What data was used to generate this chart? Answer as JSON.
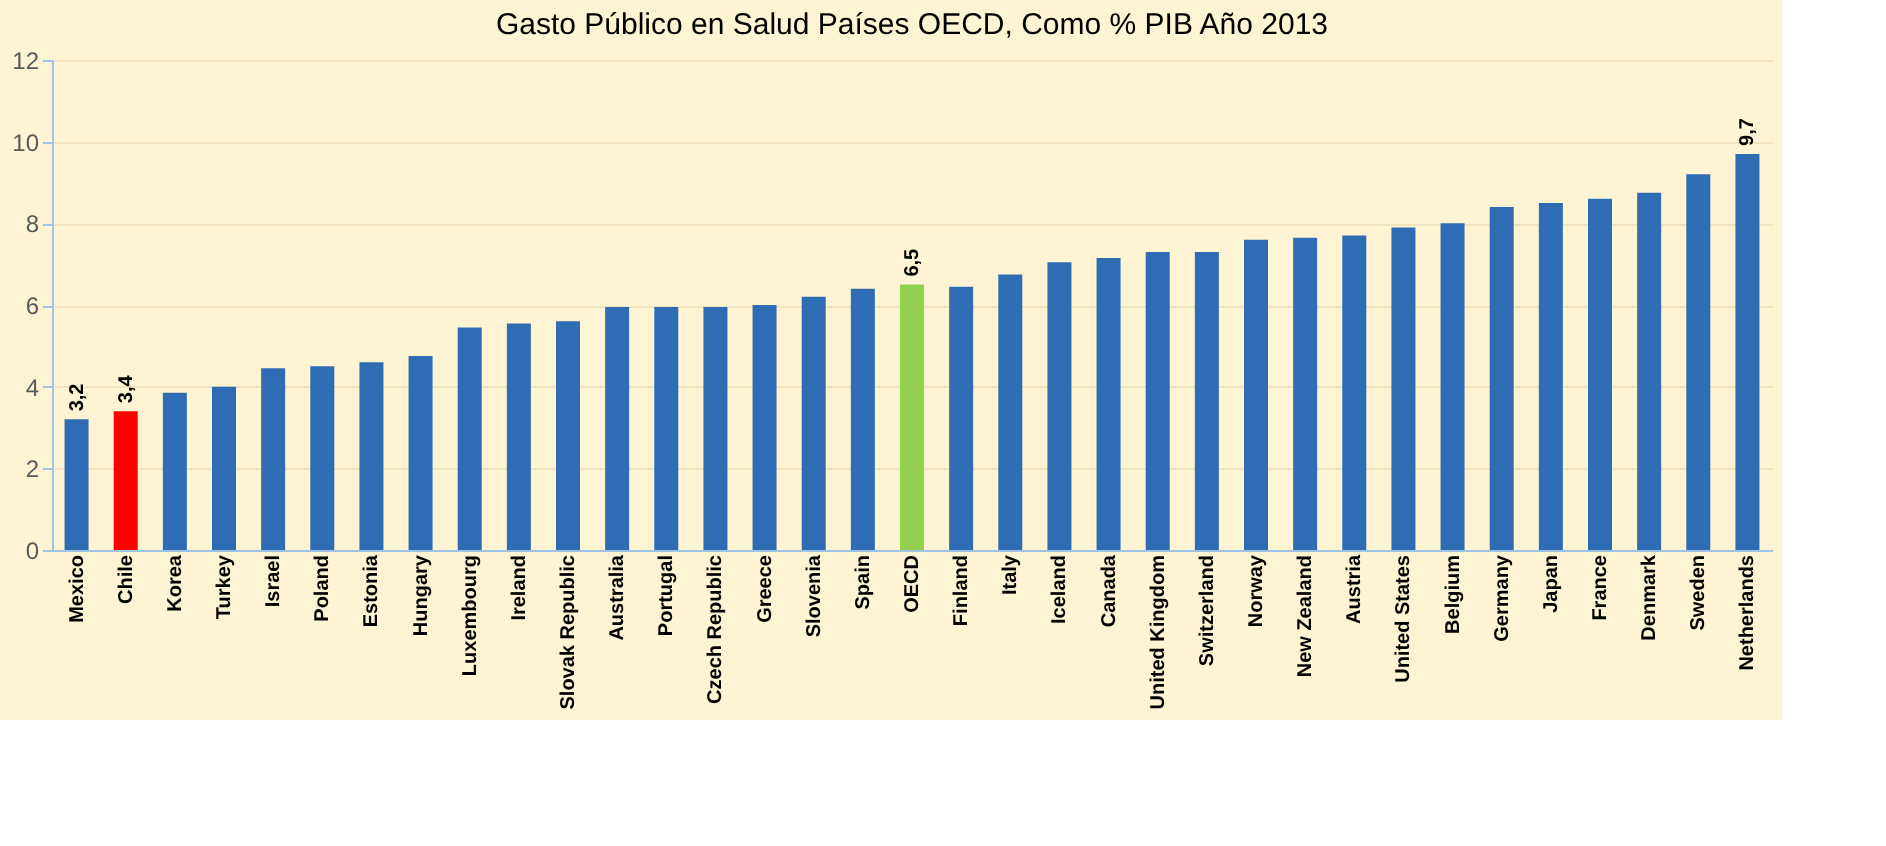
{
  "chart_data": {
    "type": "bar",
    "title": "Gasto Público en Salud Países OECD, Como % PIB Año 2013",
    "categories": [
      "Mexico",
      "Chile",
      "Korea",
      "Turkey",
      "Israel",
      "Poland",
      "Estonia",
      "Hungary",
      "Luxembourg",
      "Ireland",
      "Slovak Republic",
      "Australia",
      "Portugal",
      "Czech Republic",
      "Greece",
      "Slovenia",
      "Spain",
      "OECD",
      "Finland",
      "Italy",
      "Iceland",
      "Canada",
      "United Kingdom",
      "Switzerland",
      "Norway",
      "New Zealand",
      "Austria",
      "United States",
      "Belgium",
      "Germany",
      "Japan",
      "France",
      "Denmark",
      "Sweden",
      "Netherlands"
    ],
    "values": [
      3.2,
      3.4,
      3.85,
      4.0,
      4.45,
      4.5,
      4.6,
      4.75,
      5.45,
      5.55,
      5.6,
      5.95,
      5.95,
      5.95,
      6.0,
      6.2,
      6.4,
      6.5,
      6.45,
      6.75,
      7.05,
      7.15,
      7.3,
      7.3,
      7.6,
      7.65,
      7.7,
      7.9,
      8.0,
      8.4,
      8.5,
      8.6,
      8.75,
      9.2,
      9.7
    ],
    "value_labels": [
      "3,2",
      "3,4",
      null,
      null,
      null,
      null,
      null,
      null,
      null,
      null,
      null,
      null,
      null,
      null,
      null,
      null,
      null,
      "6,5",
      null,
      null,
      null,
      null,
      null,
      null,
      null,
      null,
      null,
      null,
      null,
      null,
      null,
      null,
      null,
      null,
      "9,7"
    ],
    "colors": [
      "#2e6db4",
      "#ff0000",
      "#2e6db4",
      "#2e6db4",
      "#2e6db4",
      "#2e6db4",
      "#2e6db4",
      "#2e6db4",
      "#2e6db4",
      "#2e6db4",
      "#2e6db4",
      "#2e6db4",
      "#2e6db4",
      "#2e6db4",
      "#2e6db4",
      "#2e6db4",
      "#2e6db4",
      "#92d050",
      "#2e6db4",
      "#2e6db4",
      "#2e6db4",
      "#2e6db4",
      "#2e6db4",
      "#2e6db4",
      "#2e6db4",
      "#2e6db4",
      "#2e6db4",
      "#2e6db4",
      "#2e6db4",
      "#2e6db4",
      "#2e6db4",
      "#2e6db4",
      "#2e6db4",
      "#2e6db4",
      "#2e6db4"
    ],
    "ylim": [
      0,
      12
    ],
    "yticks": [
      0,
      2,
      4,
      6,
      8,
      10,
      12
    ],
    "grid": "y"
  }
}
